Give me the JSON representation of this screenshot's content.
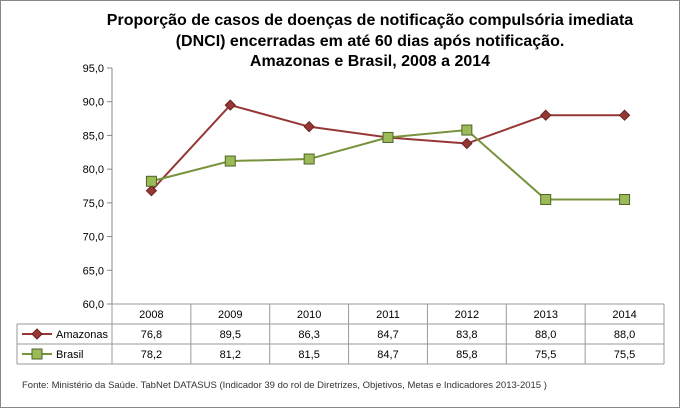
{
  "chart_data": {
    "type": "line",
    "title": [
      "Proporção de casos de doenças de notificação compulsória imediata",
      "(DNCI) encerradas em até 60 dias após notificação.",
      "Amazonas e Brasil, 2008 a 2014"
    ],
    "categories": [
      "2008",
      "2009",
      "2010",
      "2011",
      "2012",
      "2013",
      "2014"
    ],
    "series": [
      {
        "name": "Amazonas",
        "values": [
          76.8,
          89.5,
          86.3,
          84.7,
          83.8,
          88.0,
          88.0
        ],
        "labels": [
          "76,8",
          "89,5",
          "86,3",
          "84,7",
          "83,8",
          "88,0",
          "88,0"
        ],
        "color": "#953735",
        "marker": "diamond"
      },
      {
        "name": "Brasil",
        "values": [
          78.2,
          81.2,
          81.5,
          84.7,
          85.8,
          75.5,
          75.5
        ],
        "labels": [
          "78,2",
          "81,2",
          "81,5",
          "84,7",
          "85,8",
          "75,5",
          "75,5"
        ],
        "color": "#77933C",
        "marker": "square"
      }
    ],
    "ylim": [
      60,
      95
    ],
    "yticks": [
      "60,0",
      "65,0",
      "70,0",
      "75,0",
      "80,0",
      "85,0",
      "90,0",
      "95,0"
    ],
    "legend": "data-table",
    "grid": false
  },
  "source": "Fonte: Ministério da Saúde. TabNet DATASUS (Indicador 39 do rol de Diretrizes, Objetivos, Metas e Indicadores 2013-2015 )"
}
